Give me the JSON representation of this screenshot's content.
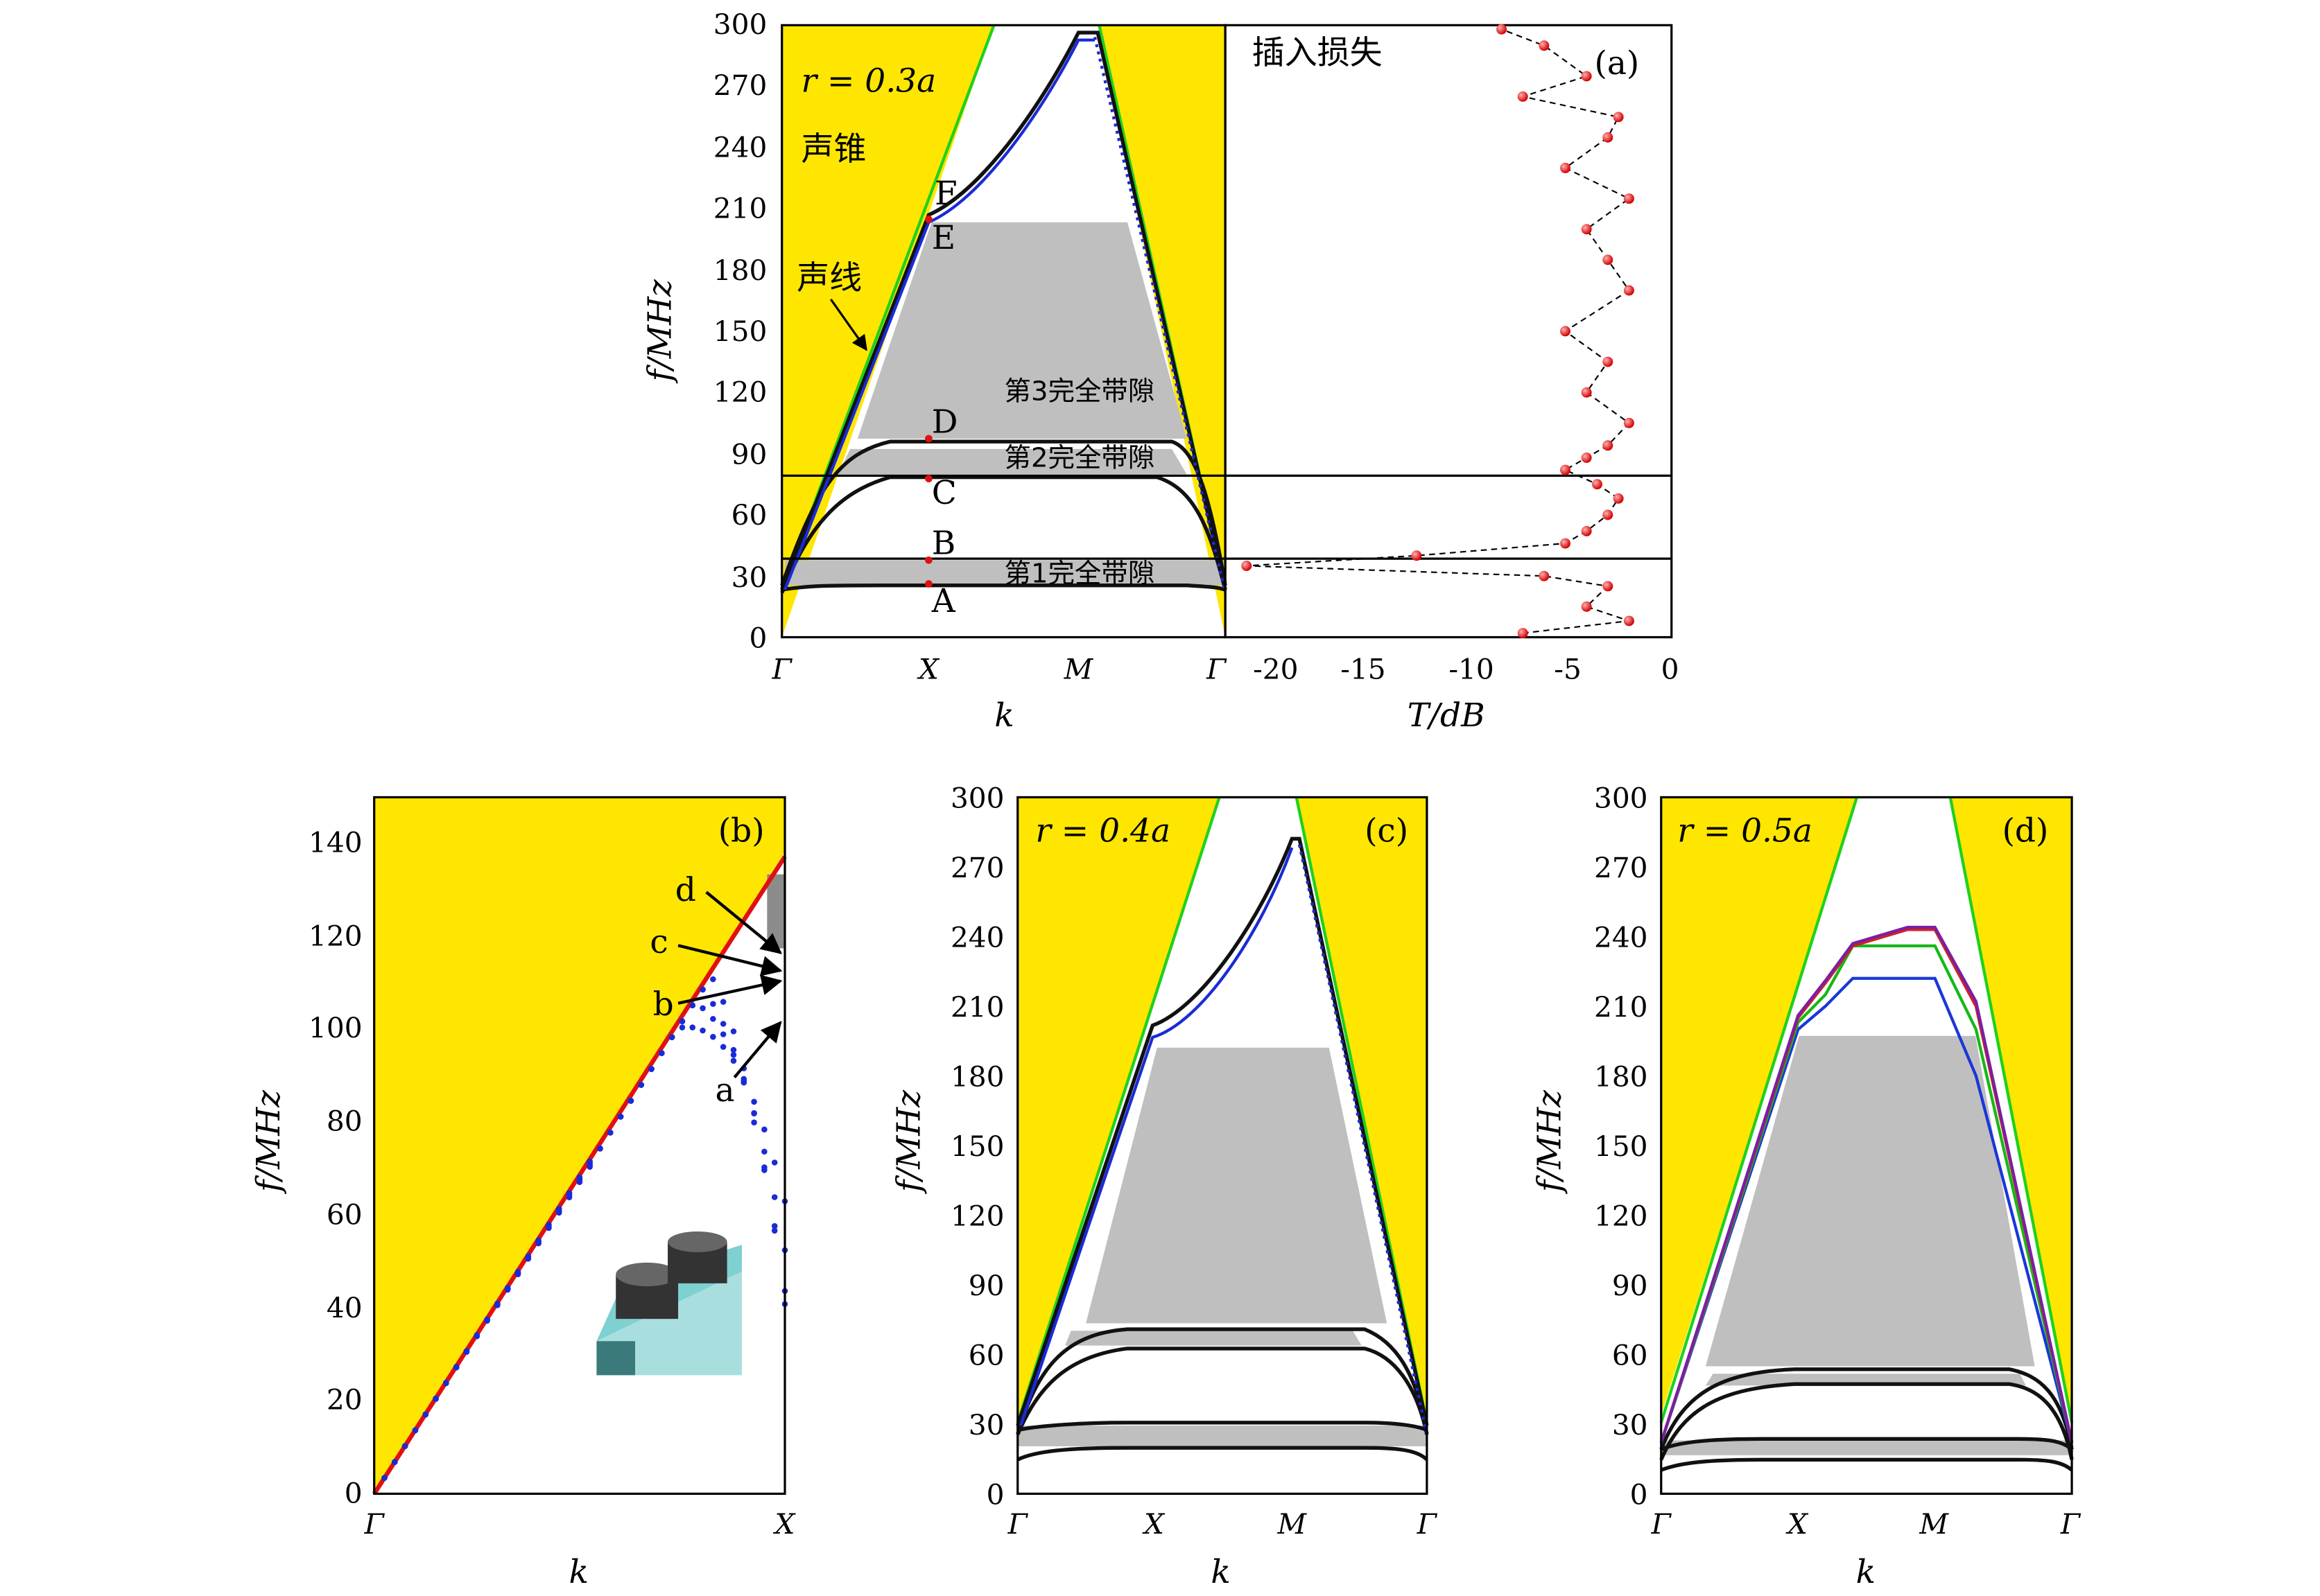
{
  "chart_data": [
    {
      "panel": "a-band",
      "type": "line",
      "title": "",
      "xlabel": "k",
      "ylabel": "f/MHz",
      "ylim": [
        0,
        300
      ],
      "xticks": [
        "Γ",
        "X",
        "M",
        "Γ"
      ],
      "yticks": [
        0,
        30,
        60,
        90,
        120,
        150,
        180,
        210,
        240,
        270,
        300
      ],
      "annotations": {
        "radius": "r = 0.3a",
        "cone": "声锥",
        "soundline": "声线"
      },
      "points": {
        "A": 26,
        "B": 38,
        "C": 79,
        "D": 97,
        "E": 204,
        "F": 208
      },
      "gap_labels": {
        "gap1": "第1完全带隙",
        "gap2": "第2完全带隙",
        "gap3": "第3完全带隙"
      },
      "gaps": [
        [
          28,
          38
        ],
        [
          80,
          96
        ],
        [
          98,
          202
        ]
      ],
      "bands": [
        {
          "name": "",
          "x": [
            0,
            0.5,
            1.0,
            2.0,
            2.5,
            3.0
          ],
          "y": [
            20,
            24,
            26,
            26,
            24,
            20
          ]
        },
        {
          "name": "",
          "x": [
            0,
            0.3,
            0.5,
            1.0,
            2.0,
            2.5,
            2.8,
            3.0
          ],
          "y": [
            22,
            55,
            68,
            78,
            78,
            68,
            50,
            22
          ]
        },
        {
          "name": "",
          "x": [
            0,
            0.5,
            1.0,
            2.0,
            2.5,
            3.0
          ],
          "y": [
            24,
            85,
            97,
            96,
            85,
            24
          ]
        },
        {
          "name": "",
          "x": [
            0,
            0.5,
            1.0,
            1.5,
            2.0,
            2.5,
            3.0
          ],
          "y": [
            24,
            125,
            207,
            260,
            298,
            160,
            24
          ]
        }
      ]
    },
    {
      "panel": "a-transmission",
      "type": "line",
      "title": "插入损失",
      "xlabel": "T/dB",
      "ylabel": "",
      "xlim": [
        -21,
        0
      ],
      "ylim": [
        0,
        300
      ],
      "xticks": [
        -20,
        -15,
        -10,
        -5,
        0
      ],
      "panel_label": "(a)",
      "series": [
        {
          "name": "",
          "x": [
            -7,
            -2,
            -4,
            -3,
            -6,
            -20,
            -12,
            -5,
            -4,
            -3,
            -2.5,
            -3.5,
            -5,
            -4,
            -3,
            -2,
            -4,
            -3,
            -5,
            -2,
            -3,
            -4,
            -2,
            -5,
            -3,
            -2.5,
            -7,
            -4,
            -6,
            -8
          ],
          "y": [
            2,
            8,
            15,
            25,
            30,
            35,
            40,
            46,
            52,
            60,
            68,
            75,
            82,
            88,
            94,
            105,
            120,
            135,
            150,
            170,
            185,
            200,
            215,
            230,
            245,
            255,
            265,
            275,
            290,
            298
          ]
        }
      ]
    },
    {
      "panel": "b",
      "type": "scatter",
      "title": "",
      "xlabel": "k",
      "ylabel": "f/MHz",
      "ylim": [
        0,
        150
      ],
      "xticks": [
        "Γ",
        "X"
      ],
      "yticks": [
        0,
        20,
        40,
        60,
        80,
        100,
        120,
        140
      ],
      "panel_label": "(b)",
      "curve_labels": [
        "a",
        "b",
        "c",
        "d"
      ],
      "curve_end": {
        "a": 104,
        "b": 110,
        "c": 113,
        "d": 116
      }
    },
    {
      "panel": "c",
      "type": "line",
      "title": "",
      "xlabel": "k",
      "ylabel": "f/MHz",
      "ylim": [
        0,
        300
      ],
      "xticks": [
        "Γ",
        "X",
        "M",
        "Γ"
      ],
      "yticks": [
        0,
        30,
        60,
        90,
        120,
        150,
        180,
        210,
        240,
        270,
        300
      ],
      "panel_label": "(c)",
      "annotations": {
        "radius": "r = 0.4a"
      },
      "gaps": [
        [
          21,
          30
        ],
        [
          64,
          68
        ],
        [
          72,
          191
        ]
      ],
      "bands": [
        {
          "name": "",
          "x": [
            0,
            0.5,
            1.0,
            2.0,
            2.5,
            3.0
          ],
          "y": [
            15,
            19,
            20,
            20,
            19,
            15
          ]
        },
        {
          "name": "",
          "x": [
            0,
            0.5,
            1.0,
            2.0,
            2.5,
            3.0
          ],
          "y": [
            22,
            30,
            31,
            31,
            30,
            22
          ]
        },
        {
          "name": "",
          "x": [
            0,
            0.3,
            0.5,
            1.0,
            2.0,
            2.5,
            2.8,
            3.0
          ],
          "y": [
            20,
            48,
            56,
            63,
            63,
            56,
            45,
            20
          ]
        },
        {
          "name": "",
          "x": [
            0,
            0.5,
            1.0,
            2.0,
            2.5,
            3.0
          ],
          "y": [
            24,
            67,
            71,
            71,
            67,
            24
          ]
        },
        {
          "name": "",
          "x": [
            0,
            0.5,
            1.0,
            1.5,
            2.0,
            2.5,
            3.0
          ],
          "y": [
            24,
            110,
            200,
            240,
            282,
            150,
            24
          ]
        }
      ]
    },
    {
      "panel": "d",
      "type": "line",
      "title": "",
      "xlabel": "k",
      "ylabel": "f/MHz",
      "ylim": [
        0,
        300
      ],
      "xticks": [
        "Γ",
        "X",
        "M",
        "Γ"
      ],
      "yticks": [
        0,
        30,
        60,
        90,
        120,
        150,
        180,
        210,
        240,
        270,
        300
      ],
      "panel_label": "(d)",
      "annotations": {
        "radius": "r = 0.5a"
      },
      "gaps": [
        [
          16,
          23
        ],
        [
          49,
          52
        ],
        [
          55,
          197
        ]
      ],
      "bands": [
        {
          "name": "",
          "x": [
            0,
            0.5,
            1.0,
            2.0,
            2.5,
            3.0
          ],
          "y": [
            10,
            15,
            16,
            16,
            15,
            10
          ]
        },
        {
          "name": "",
          "x": [
            0,
            0.5,
            1.0,
            2.0,
            2.5,
            3.0
          ],
          "y": [
            18,
            22,
            23,
            23,
            22,
            18
          ]
        },
        {
          "name": "",
          "x": [
            0,
            0.3,
            0.5,
            1.0,
            2.0,
            2.5,
            2.8,
            3.0
          ],
          "y": [
            14,
            38,
            44,
            48,
            48,
            44,
            36,
            14
          ]
        },
        {
          "name": "",
          "x": [
            0,
            0.5,
            1.0,
            2.0,
            2.5,
            3.0
          ],
          "y": [
            20,
            50,
            54,
            54,
            50,
            20
          ]
        }
      ],
      "upper_bands": [
        {
          "color": "#1b36d8",
          "x": [
            0,
            1.0,
            1.2,
            1.4,
            2.0,
            2.3,
            3.0
          ],
          "y": [
            22,
            200,
            210,
            222,
            222,
            180,
            22
          ]
        },
        {
          "color": "#17b817",
          "x": [
            0,
            1.0,
            1.2,
            1.4,
            2.0,
            2.3,
            3.0
          ],
          "y": [
            22,
            203,
            215,
            236,
            236,
            200,
            22
          ]
        },
        {
          "color": "#d42020",
          "x": [
            0,
            1.0,
            1.2,
            1.4,
            1.8,
            2.0,
            2.3,
            3.0
          ],
          "y": [
            22,
            205,
            220,
            236,
            243,
            243,
            210,
            22
          ]
        },
        {
          "color": "#7b1fa2",
          "x": [
            0,
            1.0,
            1.2,
            1.4,
            1.8,
            2.0,
            2.3,
            3.0
          ],
          "y": [
            22,
            206,
            221,
            237,
            244,
            244,
            212,
            22
          ]
        }
      ]
    }
  ],
  "colors": {
    "cone": "#ffe600",
    "gap": "#bfbfbf",
    "soundline": "#1ed11e",
    "red": "#e01010",
    "blue": "#1a2bd6"
  }
}
